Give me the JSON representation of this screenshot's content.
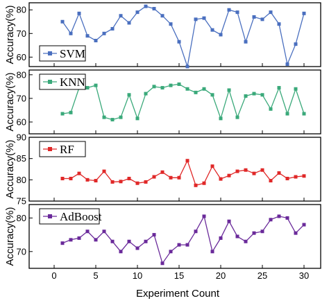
{
  "chart_data": {
    "type": "line",
    "xlabel": "Experiment Count",
    "xlim": [
      -3,
      32
    ],
    "x_ticks": [
      0,
      5,
      10,
      15,
      20,
      25,
      30
    ],
    "x": [
      1,
      2,
      3,
      4,
      5,
      6,
      7,
      8,
      9,
      10,
      11,
      12,
      13,
      14,
      15,
      16,
      17,
      18,
      19,
      20,
      21,
      22,
      23,
      24,
      25,
      26,
      27,
      28,
      29,
      30
    ],
    "panels": [
      {
        "name": "SVM",
        "color": "#4a6fbf",
        "marker": "square",
        "ylabel": "Accuracy(%)",
        "ylim": [
          56,
          83
        ],
        "y_ticks": [
          60,
          70,
          80
        ],
        "legend_position": "bottom-left",
        "values": [
          75,
          70,
          78.5,
          69,
          67,
          70,
          72,
          77.5,
          74.5,
          79,
          81.5,
          80.5,
          77.5,
          74,
          66.5,
          56,
          76,
          76.5,
          71.5,
          69.5,
          80,
          79,
          66.5,
          77,
          76,
          79,
          74,
          57,
          65.5,
          78.5
        ]
      },
      {
        "name": "KNN",
        "color": "#3aa97a",
        "marker": "square",
        "ylabel": "Accuracy(%)",
        "ylim": [
          55,
          82
        ],
        "y_ticks": [
          60,
          70,
          80
        ],
        "legend_position": "top-left",
        "values": [
          63.5,
          64,
          74.5,
          74.5,
          75.5,
          62,
          61,
          62,
          71.5,
          61.5,
          72,
          75,
          74.5,
          75.5,
          76,
          74,
          72.5,
          74,
          71.5,
          61.5,
          73.5,
          62,
          71,
          72,
          71.5,
          65.5,
          74.5,
          63.5,
          74,
          63.5
        ]
      },
      {
        "name": "RF",
        "color": "#e02828",
        "marker": "square",
        "ylabel": "Accuracy(%)",
        "ylim": [
          75,
          90
        ],
        "y_ticks": [
          75,
          80,
          85,
          90
        ],
        "legend_position": "top-left",
        "values": [
          80.3,
          80.3,
          81.5,
          80,
          79.8,
          82,
          79.5,
          79.6,
          80.3,
          79.2,
          79.5,
          80.7,
          81.8,
          80.5,
          80.5,
          84.5,
          78.7,
          79.2,
          83.2,
          80.2,
          81,
          82,
          82.3,
          81.5,
          82.3,
          79.8,
          81.6,
          80.3,
          80.7,
          80.9
        ]
      },
      {
        "name": "AdBoost",
        "color": "#6a2a9a",
        "marker": "square",
        "ylabel": "Accuracy(%)",
        "ylim": [
          65,
          84
        ],
        "y_ticks": [
          70,
          80
        ],
        "legend_position": "top-left",
        "values": [
          72.5,
          73.5,
          74,
          76,
          73.5,
          76,
          73,
          70,
          73,
          71,
          73,
          75,
          66.5,
          70,
          72,
          72,
          76,
          80.5,
          70,
          74,
          79,
          74.5,
          73,
          75.5,
          76,
          79.5,
          80.5,
          80,
          75.5,
          78
        ]
      }
    ]
  }
}
